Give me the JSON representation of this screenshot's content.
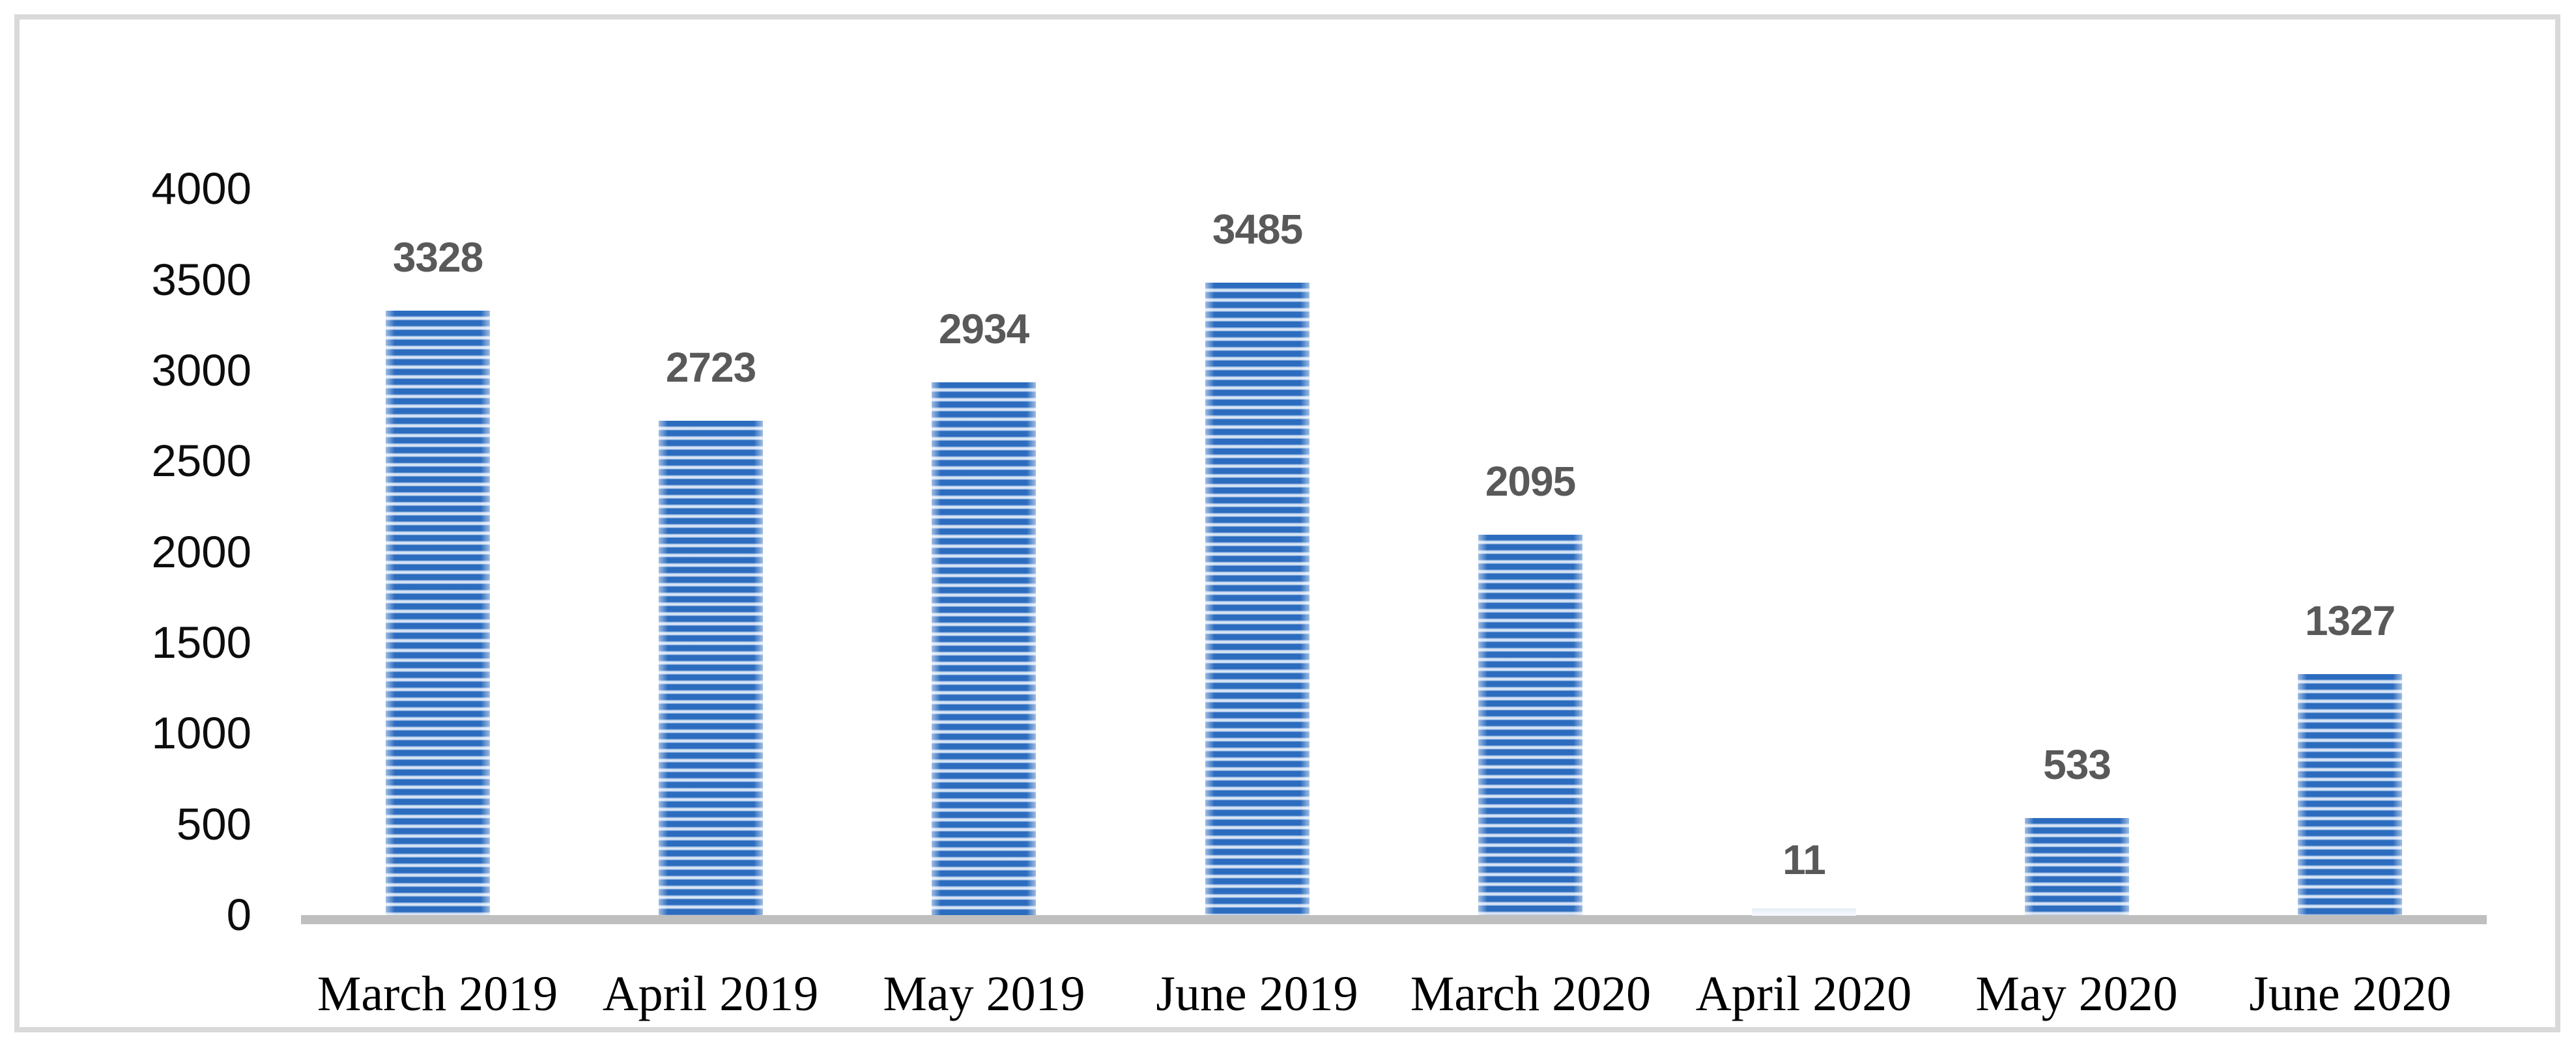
{
  "figure": {
    "background_color": "#ffffff",
    "border_color": "#d9d9d9"
  },
  "chart_data": {
    "type": "bar",
    "title": "",
    "xlabel": "",
    "ylabel": "",
    "categories": [
      "March 2019",
      "April 2019",
      "May 2019",
      "June 2019",
      "March 2020",
      "April 2020",
      "May 2020",
      "June 2020"
    ],
    "values": [
      3328,
      2723,
      2934,
      3485,
      2095,
      11,
      533,
      1327
    ],
    "data_labels": [
      "3328",
      "2723",
      "2934",
      "3485",
      "2095",
      "11",
      "533",
      "1327"
    ],
    "ylim": [
      0,
      4000
    ],
    "ytick_interval": 500,
    "yticks": [
      0,
      500,
      1000,
      1500,
      2000,
      2500,
      3000,
      3500,
      4000
    ],
    "ytick_labels": [
      "0",
      "500",
      "1000",
      "1500",
      "2000",
      "2500",
      "3000",
      "3500",
      "4000"
    ],
    "grid": false,
    "legend": false,
    "bar_pattern": "horizontal-stripes",
    "colors": {
      "bar_stripe": "#2c6cbf",
      "bar_stripe_light": "#dbe7f6",
      "data_label": "#595959",
      "axis_line": "#bfbfbf",
      "tick_label": "#0d0d0d",
      "x_label": "#000000"
    }
  }
}
